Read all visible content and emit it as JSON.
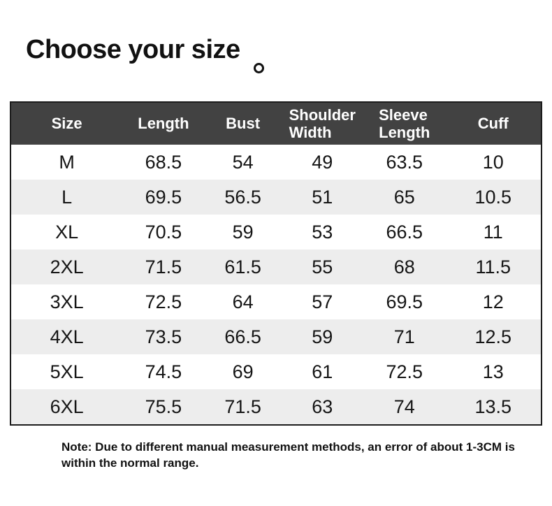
{
  "title": "Choose your size",
  "note": "Note: Due to different manual measurement methods, an error of about 1-3CM is within the normal range.",
  "colors": {
    "header_bg": "#424242",
    "header_text": "#ffffff",
    "row_alt_bg": "#ededed",
    "body_text": "#151515",
    "table_border": "#1c1c1c",
    "title_text": "#111111"
  },
  "icons": {
    "title_ring": "circle-outline"
  },
  "chart_data": {
    "type": "table",
    "title": "Choose your size",
    "columns": [
      "Size",
      "Length",
      "Bust",
      "Shoulder Width",
      "Sleeve Length",
      "Cuff"
    ],
    "header_display": [
      "Size",
      "Length",
      "Bust",
      "Shoulder\nWidth",
      "Sleeve\nLength",
      "Cuff"
    ],
    "rows": [
      [
        "M",
        "68.5",
        "54",
        "49",
        "63.5",
        "10"
      ],
      [
        "L",
        "69.5",
        "56.5",
        "51",
        "65",
        "10.5"
      ],
      [
        "XL",
        "70.5",
        "59",
        "53",
        "66.5",
        "11"
      ],
      [
        "2XL",
        "71.5",
        "61.5",
        "55",
        "68",
        "11.5"
      ],
      [
        "3XL",
        "72.5",
        "64",
        "57",
        "69.5",
        "12"
      ],
      [
        "4XL",
        "73.5",
        "66.5",
        "59",
        "71",
        "12.5"
      ],
      [
        "5XL",
        "74.5",
        "69",
        "61",
        "72.5",
        "13"
      ],
      [
        "6XL",
        "75.5",
        "71.5",
        "63",
        "74",
        "13.5"
      ]
    ]
  }
}
